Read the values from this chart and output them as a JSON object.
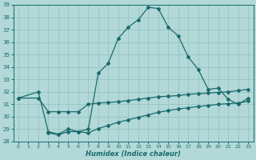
{
  "title": "",
  "xlabel": "Humidex (Indice chaleur)",
  "bg_color": "#b2d8d8",
  "grid_color": "#8fbfbf",
  "line_color": "#1a6b6b",
  "xlim": [
    -0.5,
    23.5
  ],
  "ylim": [
    28,
    39
  ],
  "xticks": [
    0,
    1,
    2,
    3,
    4,
    5,
    6,
    7,
    8,
    9,
    10,
    11,
    12,
    13,
    14,
    15,
    16,
    17,
    18,
    19,
    20,
    21,
    22,
    23
  ],
  "yticks": [
    28,
    29,
    30,
    31,
    32,
    33,
    34,
    35,
    36,
    37,
    38,
    39
  ],
  "curve1_x": [
    0,
    2,
    3,
    4,
    5,
    6,
    7,
    8,
    9,
    10,
    11,
    12,
    13,
    14,
    15,
    16,
    17,
    18,
    19,
    20,
    21,
    22,
    23
  ],
  "curve1_y": [
    31.5,
    32.0,
    28.8,
    28.6,
    29.0,
    28.8,
    29.0,
    33.5,
    34.3,
    36.3,
    37.2,
    37.8,
    38.8,
    38.7,
    37.2,
    36.5,
    34.8,
    33.8,
    32.2,
    32.3,
    31.4,
    31.0,
    31.5
  ],
  "curve2_x": [
    0,
    2,
    3,
    4,
    5,
    6,
    7,
    8,
    9,
    10,
    11,
    12,
    13,
    14,
    15,
    16,
    17,
    18,
    19,
    20,
    21,
    22,
    23
  ],
  "curve2_y": [
    31.5,
    31.5,
    30.4,
    30.4,
    30.4,
    30.4,
    31.0,
    31.1,
    31.15,
    31.2,
    31.3,
    31.4,
    31.5,
    31.6,
    31.65,
    31.7,
    31.8,
    31.85,
    31.9,
    31.95,
    32.0,
    32.1,
    32.2
  ],
  "curve3_x": [
    3,
    4,
    5,
    6,
    7,
    8,
    9,
    10,
    11,
    12,
    13,
    14,
    15,
    16,
    17,
    18,
    19,
    20,
    21,
    22,
    23
  ],
  "curve3_y": [
    28.7,
    28.55,
    28.8,
    28.8,
    28.7,
    29.05,
    29.3,
    29.55,
    29.75,
    29.95,
    30.15,
    30.35,
    30.5,
    30.62,
    30.72,
    30.82,
    30.9,
    31.0,
    31.05,
    31.1,
    31.25
  ]
}
